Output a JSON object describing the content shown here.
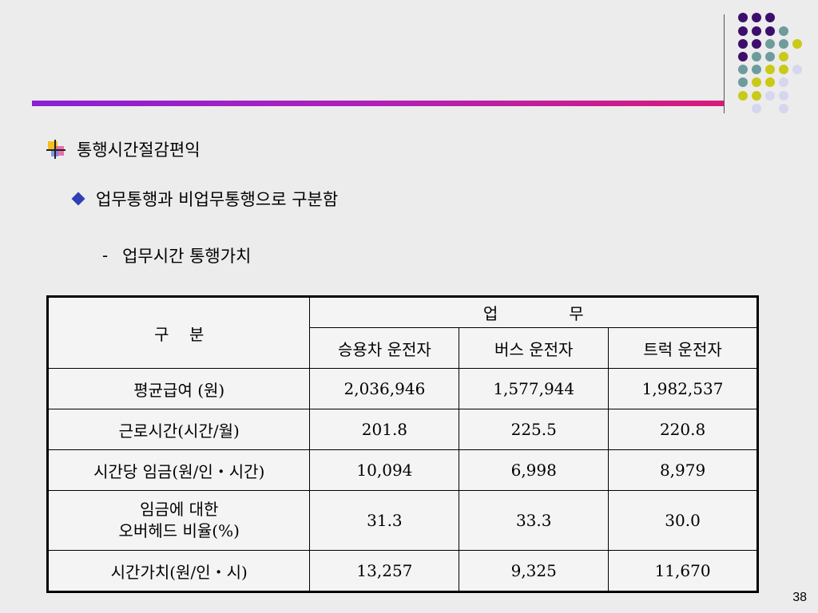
{
  "bullets": {
    "level1": "통행시간절감편익",
    "level2": "업무통행과 비업무통행으로 구분함",
    "level3_marker": "-",
    "level3": "업무시간 통행가치"
  },
  "table": {
    "row_header_label": "구    분",
    "group_header": "업              무",
    "columns": [
      "승용차 운전자",
      "버스 운전자",
      "트럭 운전자"
    ],
    "rows": [
      {
        "label": [
          "평균급여 (원)"
        ],
        "values": [
          "2,036,946",
          "1,577,944",
          "1,982,537"
        ]
      },
      {
        "label": [
          "근로시간(시간/월)"
        ],
        "values": [
          "201.8",
          "225.5",
          "220.8"
        ]
      },
      {
        "label": [
          "시간당 임금(원/인・시간)"
        ],
        "values": [
          "10,094",
          "6,998",
          "8,979"
        ]
      },
      {
        "label": [
          "임금에 대한",
          "오버헤드 비율(%)"
        ],
        "values": [
          "31.3",
          "33.3",
          "30.0"
        ]
      },
      {
        "label": [
          "시간가치(원/인・시)"
        ],
        "values": [
          "13,257",
          "9,325",
          "11,670"
        ]
      }
    ]
  },
  "page_number": "38",
  "colors": {
    "purple": "#3d0e6b",
    "teal": "#6e9c9c",
    "yellow": "#c9c91a",
    "lavender": "#d6d6ee",
    "bullet_diamond": "#2f3fb6"
  },
  "icons": [
    "slide-bullet-icon",
    "diamond-bullet-icon",
    "decorative-dot-grid"
  ]
}
